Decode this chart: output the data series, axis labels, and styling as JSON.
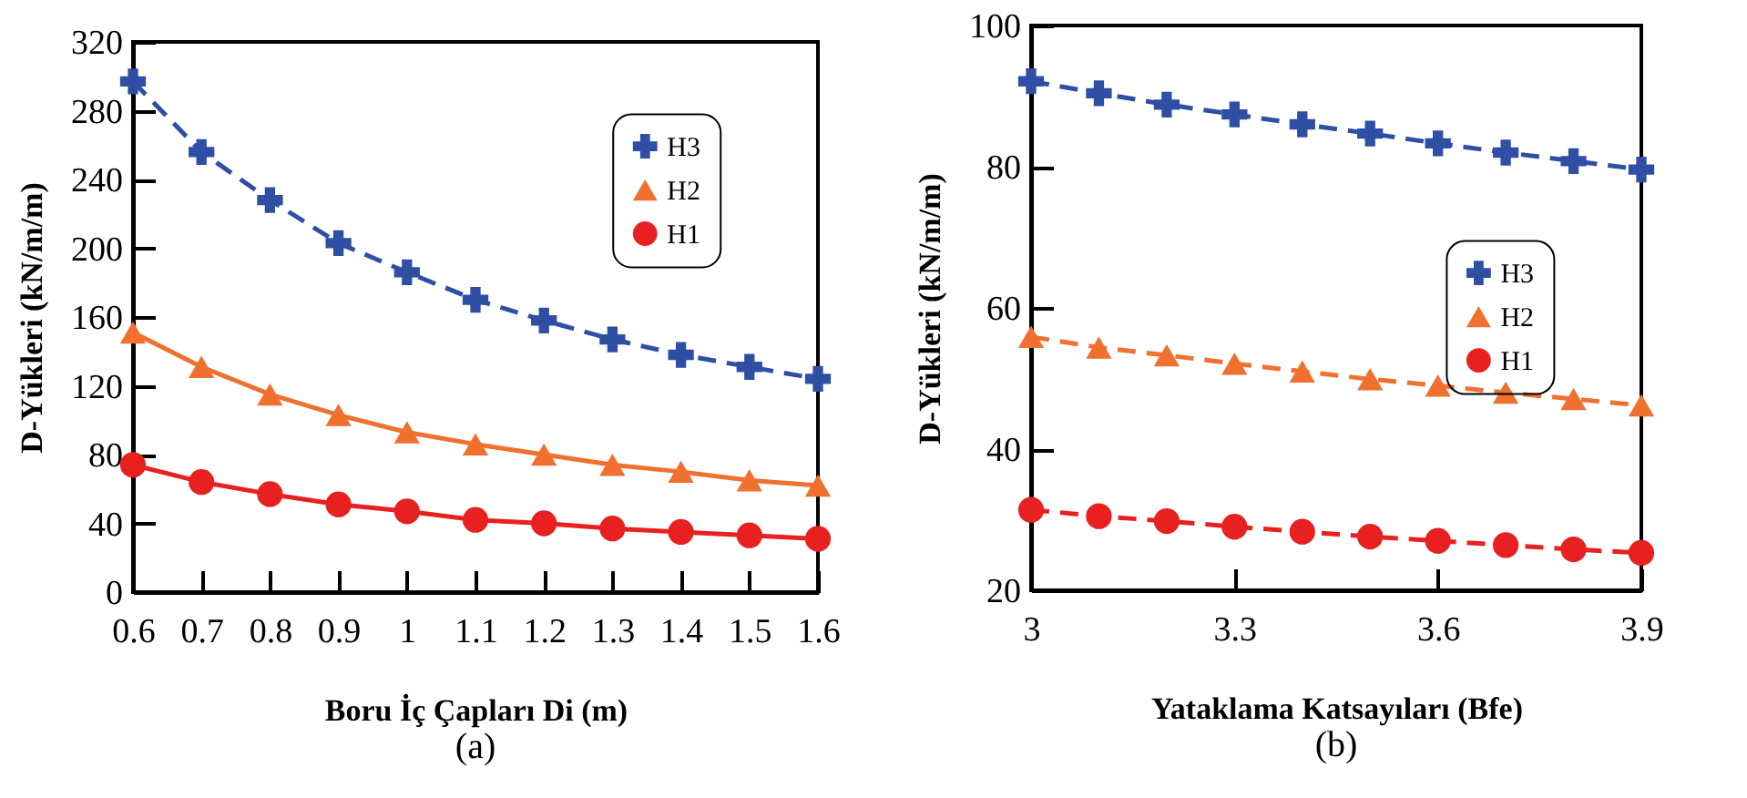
{
  "chart_data": [
    {
      "type": "line",
      "xlabel": "Boru İç Çapları Di (m)",
      "ylabel": "D-Yükleri (kN/m/m)",
      "annotations": [
        "(a)"
      ],
      "x": [
        0.6,
        0.7,
        0.8,
        0.9,
        1,
        1.1,
        1.2,
        1.3,
        1.4,
        1.5,
        1.6
      ],
      "xlim": [
        0.6,
        1.6
      ],
      "xticks": [
        0.6,
        0.7,
        0.8,
        0.9,
        1,
        1.1,
        1.2,
        1.3,
        1.4,
        1.5,
        1.6
      ],
      "ylim": [
        0,
        320
      ],
      "yticks": [
        0,
        40,
        80,
        120,
        160,
        200,
        240,
        280,
        320
      ],
      "grid": false,
      "legend": "top right",
      "series": [
        {
          "name": "H3",
          "color": "#2e4fa3",
          "marker": "cross",
          "line_style": "dashed",
          "values": [
            297,
            256,
            228,
            203,
            186,
            170,
            158,
            147,
            138,
            131,
            124
          ]
        },
        {
          "name": "H2",
          "color": "#f07030",
          "marker": "triangle",
          "line_style": "solid",
          "values": [
            151,
            131,
            115,
            103,
            93,
            86,
            80,
            74,
            70,
            65,
            62
          ]
        },
        {
          "name": "H1",
          "color": "#e82020",
          "marker": "circle",
          "line_style": "solid",
          "values": [
            74,
            64,
            57,
            51,
            47,
            42,
            40,
            37,
            35,
            33,
            31
          ]
        }
      ]
    },
    {
      "type": "line",
      "xlabel": "Yataklama Katsayıları (Bfe)",
      "ylabel": "D-Yükleri (kN/m/m)",
      "annotations": [
        "(b)"
      ],
      "x": [
        3,
        3.1,
        3.2,
        3.3,
        3.4,
        3.5,
        3.6,
        3.7,
        3.8,
        3.9
      ],
      "xlim": [
        3,
        3.9
      ],
      "xticks": [
        3,
        3.3,
        3.6,
        3.9
      ],
      "ylim": [
        20,
        100
      ],
      "yticks": [
        20,
        40,
        60,
        80,
        100
      ],
      "grid": false,
      "legend": "right",
      "series": [
        {
          "name": "H3",
          "color": "#2e4fa3",
          "marker": "cross",
          "line_style": "dashed",
          "values": [
            92.1,
            90.4,
            88.8,
            87.4,
            86.0,
            84.7,
            83.3,
            82.0,
            80.8,
            79.6
          ]
        },
        {
          "name": "H2",
          "color": "#f07030",
          "marker": "triangle",
          "line_style": "dashed",
          "values": [
            55.9,
            54.4,
            53.3,
            52.1,
            51.0,
            49.9,
            49.0,
            48.0,
            47.1,
            46.2
          ]
        },
        {
          "name": "H1",
          "color": "#e82020",
          "marker": "circle",
          "line_style": "dashed",
          "values": [
            31.4,
            30.5,
            29.8,
            29.0,
            28.3,
            27.6,
            27.0,
            26.4,
            25.8,
            25.3
          ]
        }
      ]
    }
  ]
}
